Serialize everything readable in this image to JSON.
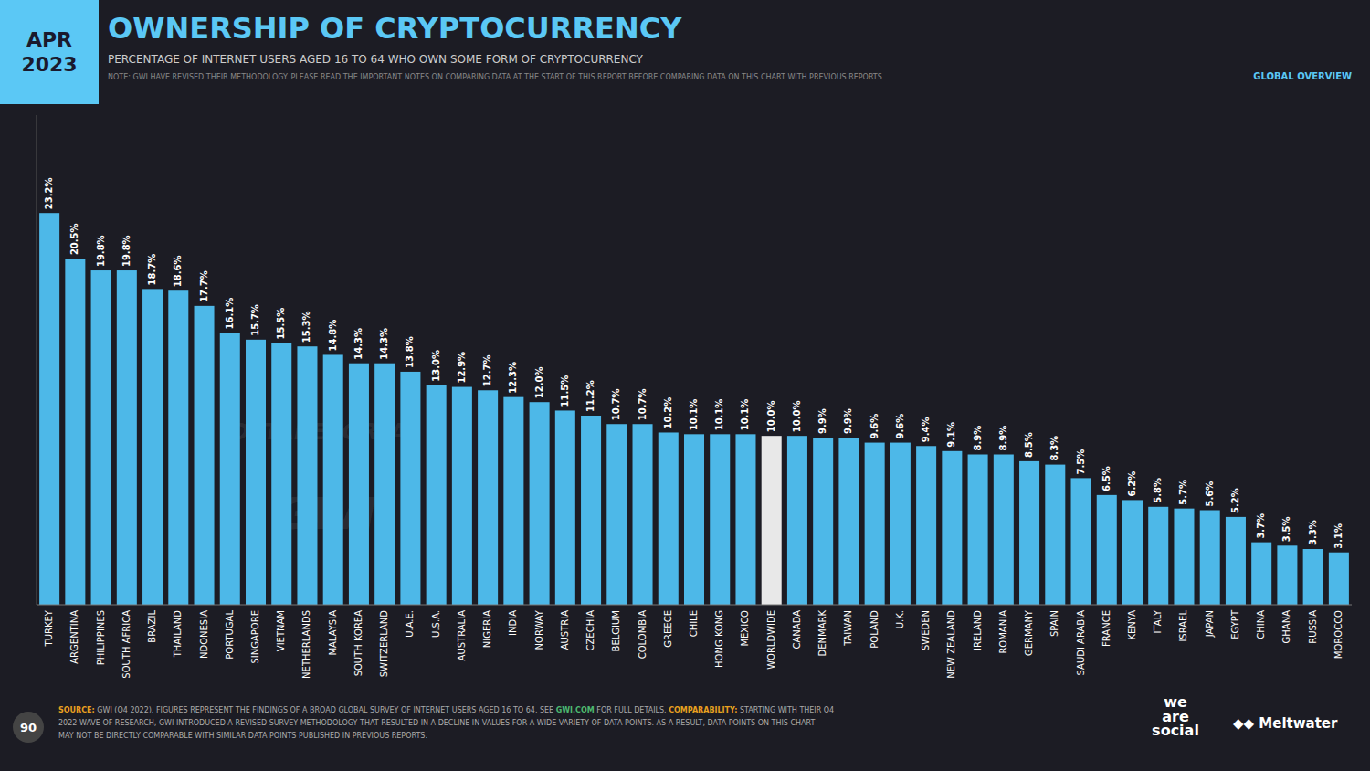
{
  "chart_data": {
    "type": "bar",
    "title": "OWNERSHIP OF CRYPTOCURRENCY",
    "subtitle": "PERCENTAGE OF INTERNET USERS AGED 16 TO 64 WHO OWN SOME FORM OF CRYPTOCURRENCY",
    "categories": [
      "TURKEY",
      "ARGENTINA",
      "PHILIPPINES",
      "SOUTH AFRICA",
      "BRAZIL",
      "THAILAND",
      "INDONESIA",
      "PORTUGAL",
      "SINGAPORE",
      "VIETNAM",
      "NETHERLANDS",
      "MALAYSIA",
      "SOUTH KOREA",
      "SWITZERLAND",
      "U.A.E.",
      "U.S.A.",
      "AUSTRALIA",
      "NIGERIA",
      "INDIA",
      "NORWAY",
      "AUSTRIA",
      "CZECHIA",
      "BELGIUM",
      "COLOMBIA",
      "GREECE",
      "CHILE",
      "HONG KONG",
      "MEXICO",
      "WORLDWIDE",
      "CANADA",
      "DENMARK",
      "TAIWAN",
      "POLAND",
      "U.K.",
      "SWEDEN",
      "NEW ZEALAND",
      "IRELAND",
      "ROMANIA",
      "GERMANY",
      "SPAIN",
      "SAUDI ARABIA",
      "FRANCE",
      "KENYA",
      "ITALY",
      "ISRAEL",
      "JAPAN",
      "EGYPT",
      "CHINA",
      "GHANA",
      "RUSSIA",
      "MOROCCO"
    ],
    "values": [
      23.2,
      20.5,
      19.8,
      19.8,
      18.7,
      18.6,
      17.7,
      16.1,
      15.7,
      15.5,
      15.3,
      14.8,
      14.3,
      14.3,
      13.8,
      13.0,
      12.9,
      12.7,
      12.3,
      12.0,
      11.5,
      11.2,
      10.7,
      10.7,
      10.2,
      10.1,
      10.1,
      10.1,
      10.0,
      10.0,
      9.9,
      9.9,
      9.6,
      9.6,
      9.4,
      9.1,
      8.9,
      8.9,
      8.5,
      8.3,
      7.5,
      6.5,
      6.2,
      5.8,
      5.7,
      5.6,
      5.2,
      3.7,
      3.5,
      3.3,
      3.1
    ],
    "value_labels": [
      "23.2%",
      "20.5%",
      "19.8%",
      "19.8%",
      "18.7%",
      "18.6%",
      "17.7%",
      "16.1%",
      "15.7%",
      "15.5%",
      "15.3%",
      "14.8%",
      "14.3%",
      "14.3%",
      "13.8%",
      "13.0%",
      "12.9%",
      "12.7%",
      "12.3%",
      "12.0%",
      "11.5%",
      "11.2%",
      "10.7%",
      "10.7%",
      "10.2%",
      "10.1%",
      "10.1%",
      "10.1%",
      "10.0%",
      "10.0%",
      "9.9%",
      "9.9%",
      "9.6%",
      "9.6%",
      "9.4%",
      "9.1%",
      "8.9%",
      "8.9%",
      "8.5%",
      "8.3%",
      "7.5%",
      "6.5%",
      "6.2%",
      "5.8%",
      "5.7%",
      "5.6%",
      "5.2%",
      "3.7%",
      "3.5%",
      "3.3%",
      "3.1%"
    ],
    "colors": [
      "#4db8e8",
      "#4db8e8",
      "#4db8e8",
      "#4db8e8",
      "#4db8e8",
      "#4db8e8",
      "#4db8e8",
      "#4db8e8",
      "#4db8e8",
      "#4db8e8",
      "#4db8e8",
      "#4db8e8",
      "#4db8e8",
      "#4db8e8",
      "#4db8e8",
      "#4db8e8",
      "#4db8e8",
      "#4db8e8",
      "#4db8e8",
      "#4db8e8",
      "#4db8e8",
      "#4db8e8",
      "#4db8e8",
      "#4db8e8",
      "#4db8e8",
      "#4db8e8",
      "#4db8e8",
      "#4db8e8",
      "#e8e8e8",
      "#4db8e8",
      "#4db8e8",
      "#4db8e8",
      "#4db8e8",
      "#4db8e8",
      "#4db8e8",
      "#4db8e8",
      "#4db8e8",
      "#4db8e8",
      "#4db8e8",
      "#4db8e8",
      "#4db8e8",
      "#4db8e8",
      "#4db8e8",
      "#4db8e8",
      "#4db8e8",
      "#4db8e8",
      "#4db8e8",
      "#4db8e8",
      "#4db8e8",
      "#4db8e8",
      "#4db8e8"
    ],
    "ylim": [
      0,
      29
    ],
    "tick_labels": "x",
    "grid": false,
    "data_labels": true,
    "annotations": [
      "APR",
      "2023",
      "NOTE: GWI HAVE REVISED THEIR METHODOLOGY. PLEASE READ THE IMPORTANT NOTES ON COMPARING DATA AT THE START OF THIS REPORT BEFORE COMPARING DATA ON THIS CHART WITH PREVIOUS REPORTS",
      "GLOBAL OVERVIEW",
      "SOURCE:",
      "GWI (Q4 2022). FIGURES REPRESENT THE FINDINGS OF A BROAD GLOBAL SURVEY OF INTERNET USERS AGED 16 TO 64. SEE ",
      "GWI.COM",
      " FOR FULL DETAILS. ",
      "COMPARABILITY:",
      "STARTING WITH THEIR Q4",
      "2022 WAVE OF RESEARCH, GWI INTRODUCED A REVISED SURVEY METHODOLOGY THAT RESULTED IN A DECLINE IN VALUES FOR A WIDE VARIETY OF DATA POINTS. AS A RESULT, DATA POINTS ON THIS CHART",
      "MAY NOT BE DIRECTLY COMPARABLE WITH SIMILAR DATA POINTS PUBLISHED IN PREVIOUS REPORTS.",
      "90",
      "we\nare\nsocial",
      "◆◆ Meltwater",
      "DATAREPORTAL",
      "GWI"
    ]
  }
}
